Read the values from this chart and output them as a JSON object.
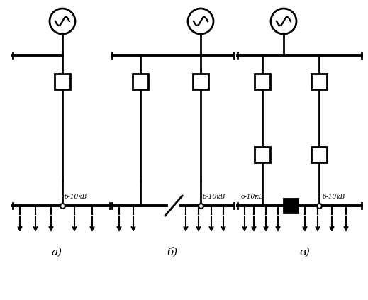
{
  "bg_color": "#ffffff",
  "line_color": "#000000",
  "lw": 2.0,
  "tlw": 1.5,
  "figsize": [
    5.19,
    4.23
  ],
  "dpi": 100,
  "label_a": "а)",
  "label_b": "б)",
  "label_v": "в)",
  "bus_label_a": "6-10кВ",
  "bus_label_b": "6-10кВ",
  "bus_label_v": "6-10кВ"
}
